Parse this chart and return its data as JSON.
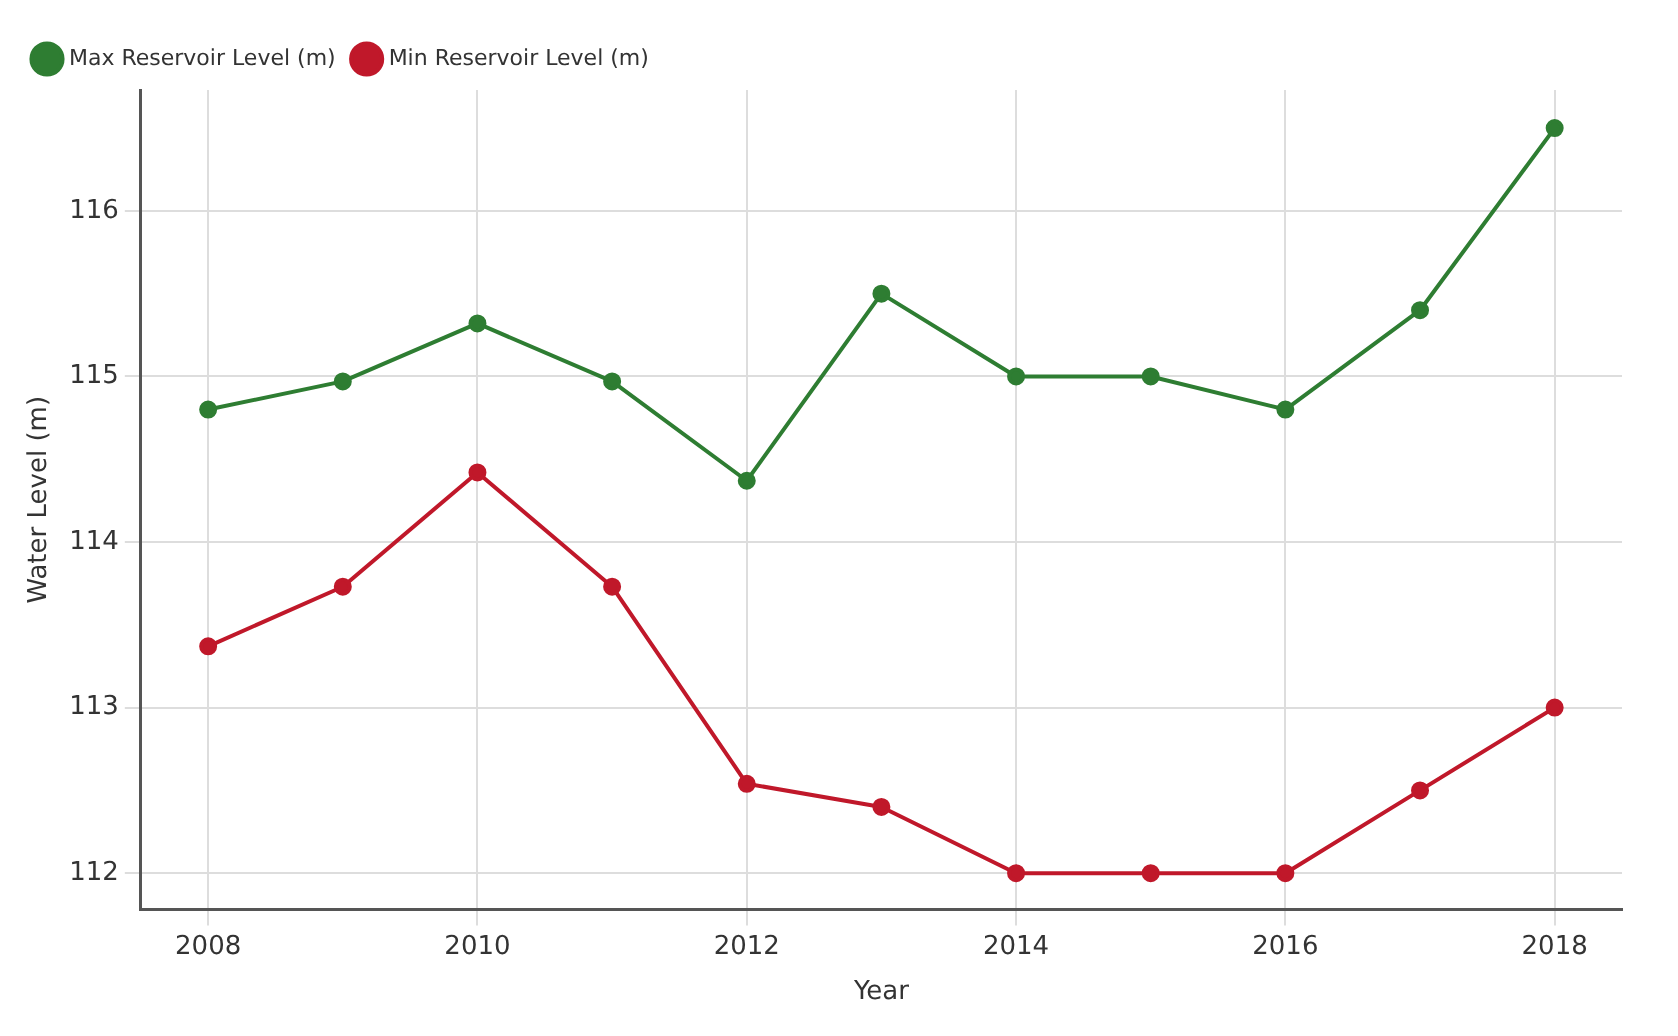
{
  "chart_data": {
    "type": "line",
    "xlabel": "Year",
    "ylabel": "Water Level (m)",
    "x": [
      2008,
      2009,
      2010,
      2011,
      2012,
      2013,
      2014,
      2015,
      2016,
      2017,
      2018
    ],
    "series": [
      {
        "name": "Max Reservoir Level (m)",
        "color": "#2e7d32",
        "values": [
          114.8,
          114.97,
          115.32,
          114.97,
          114.37,
          115.5,
          115.0,
          115.0,
          114.8,
          115.4,
          116.5
        ]
      },
      {
        "name": "Min Reservoir Level (m)",
        "color": "#c0182a",
        "values": [
          113.37,
          113.73,
          114.42,
          113.73,
          112.54,
          112.4,
          112.0,
          112.0,
          112.0,
          112.5,
          113.0
        ]
      }
    ],
    "xlim": [
      2007.5,
      2018.5
    ],
    "xticks": [
      2008,
      2010,
      2012,
      2014,
      2016,
      2018
    ],
    "ylim": [
      111.78,
      116.73
    ],
    "yticks": [
      112,
      113,
      114,
      115,
      116
    ],
    "grid": true,
    "legend": "top left",
    "marker": "circle",
    "line_style": "solid"
  }
}
